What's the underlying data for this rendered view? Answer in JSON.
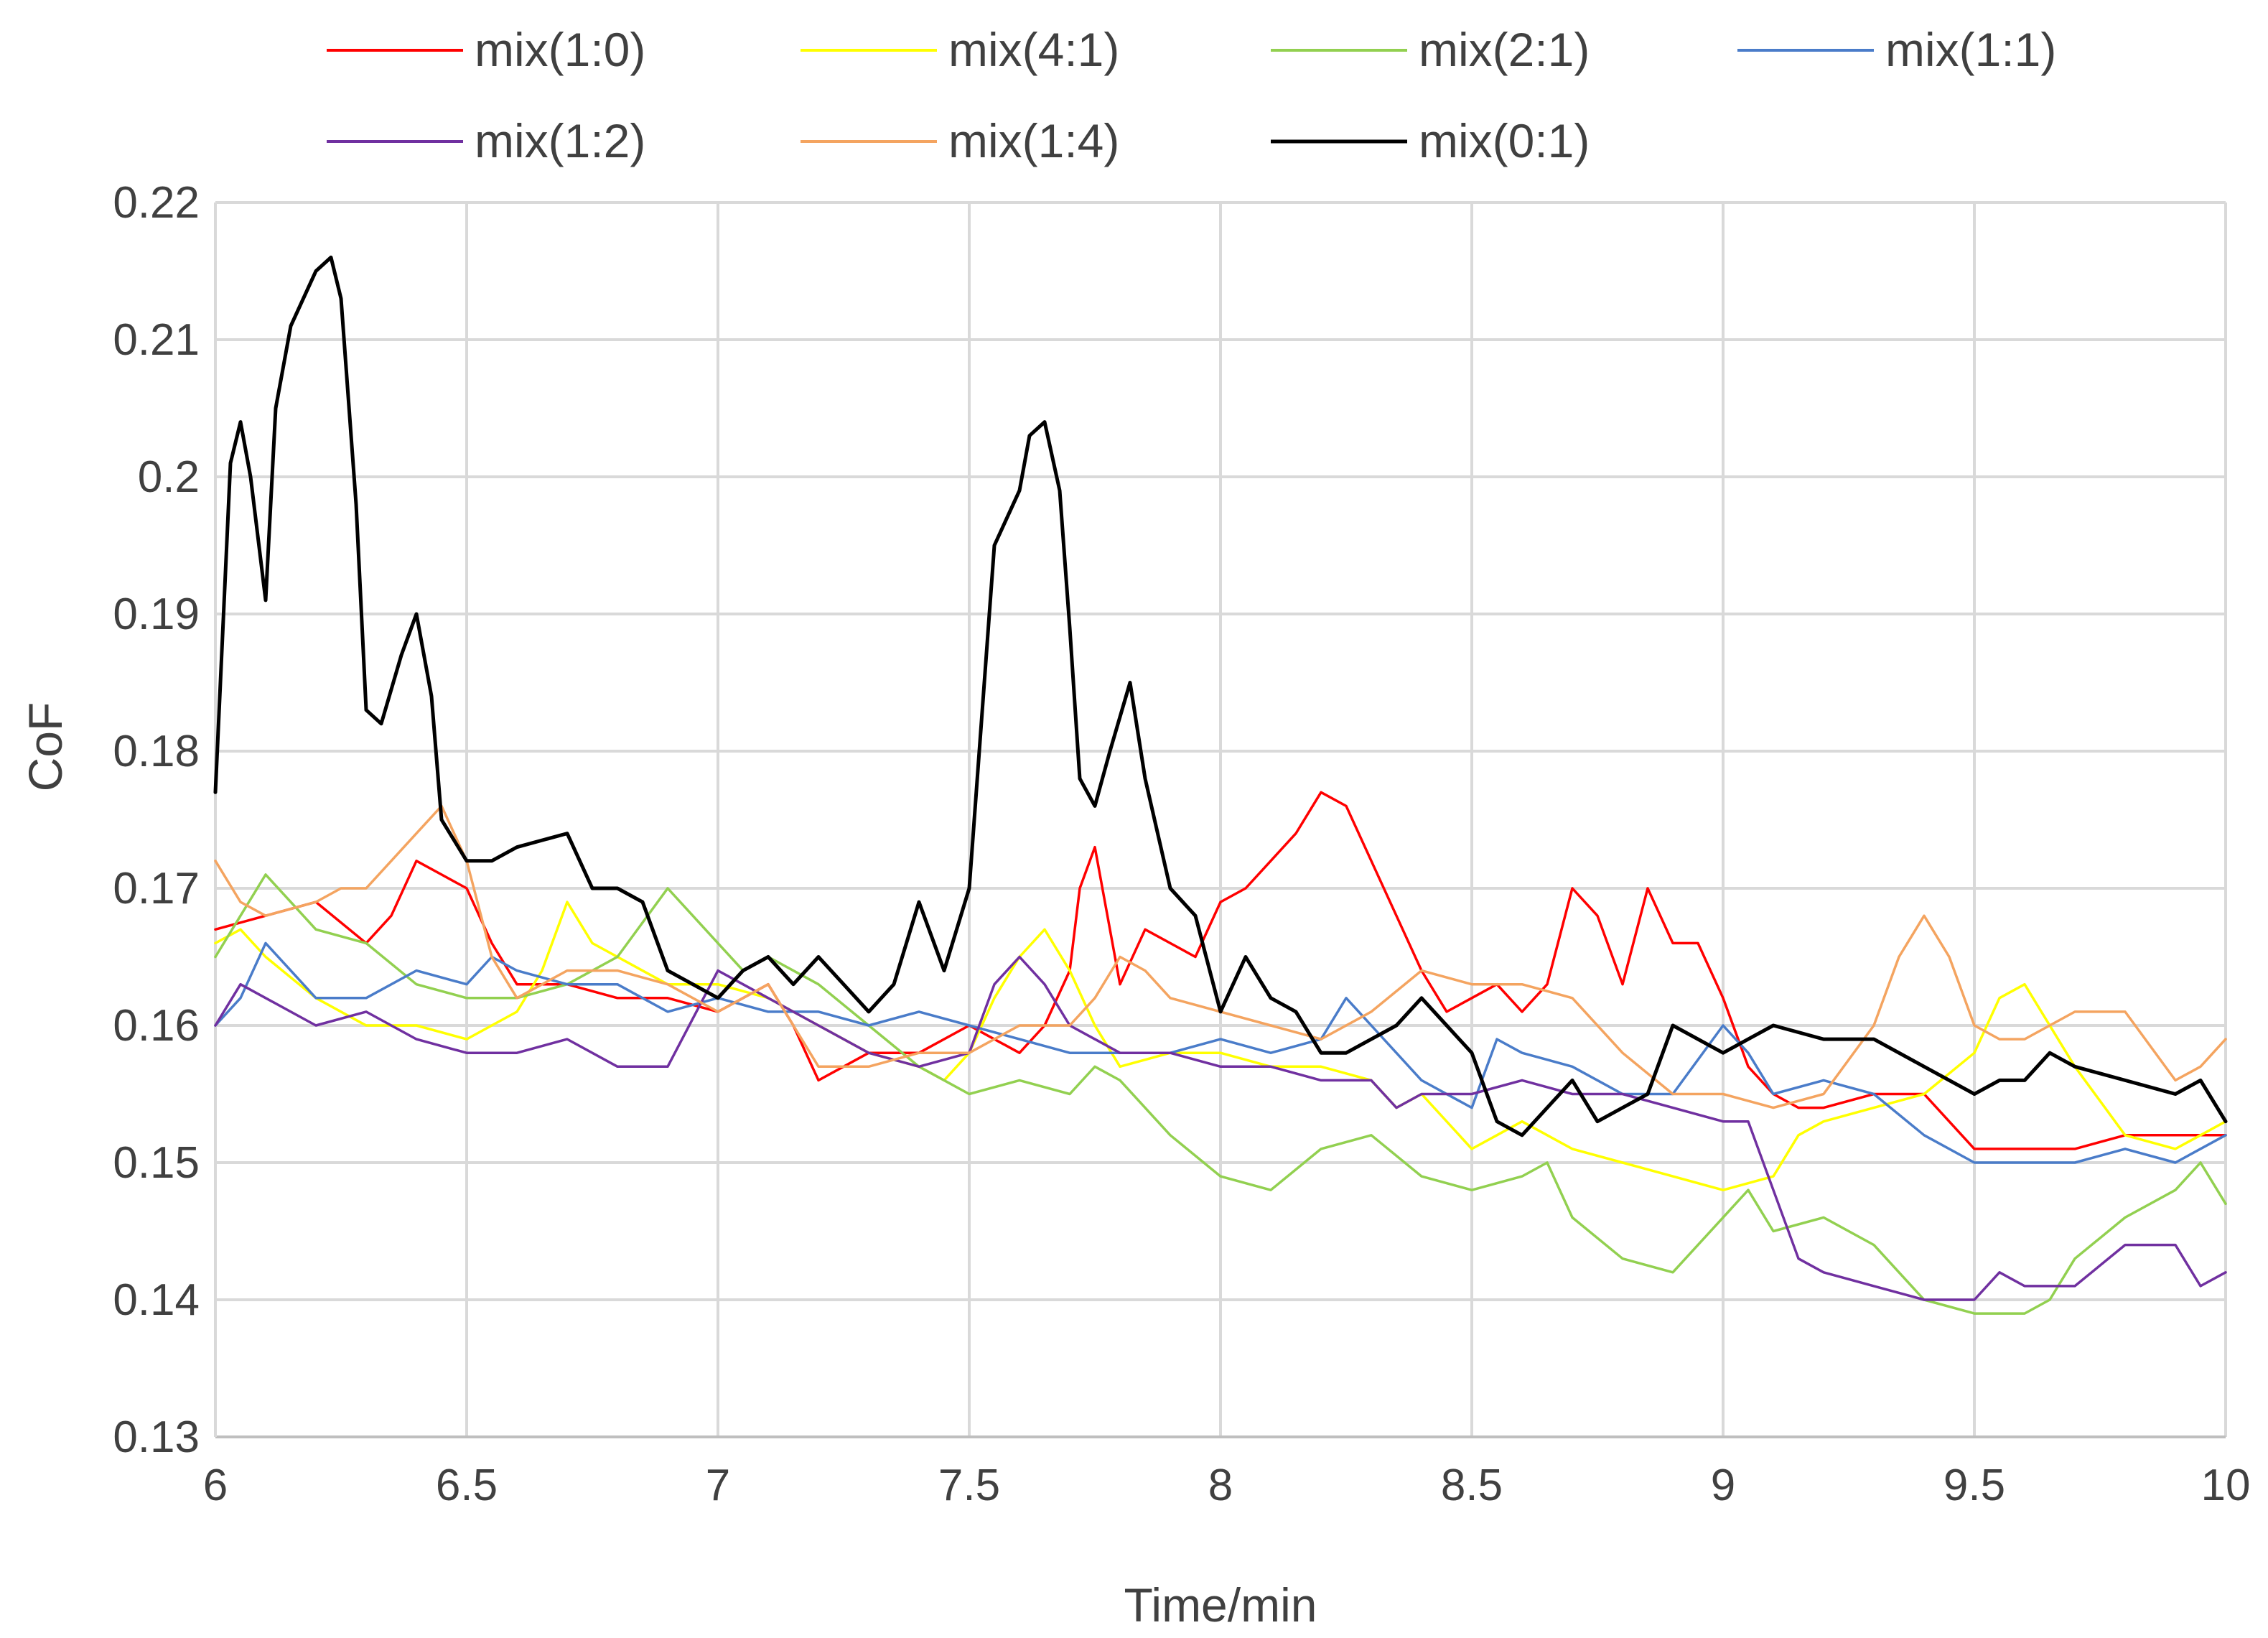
{
  "chart_data": {
    "type": "line",
    "title": "",
    "xlabel": "Time/min",
    "ylabel": "CoF",
    "xlim": [
      6,
      10
    ],
    "ylim": [
      0.13,
      0.22
    ],
    "x_ticks": [
      "6",
      "6.5",
      "7",
      "7.5",
      "8",
      "8.5",
      "9",
      "9.5",
      "10"
    ],
    "y_ticks": [
      "0.13",
      "0.14",
      "0.15",
      "0.16",
      "0.17",
      "0.18",
      "0.19",
      "0.2",
      "0.21",
      "0.22"
    ],
    "grid": true,
    "legend_position": "top",
    "series": [
      {
        "name": "mix(1:0)",
        "color": "#ff0000",
        "x": [
          6.0,
          6.1,
          6.2,
          6.3,
          6.35,
          6.4,
          6.45,
          6.5,
          6.55,
          6.6,
          6.7,
          6.8,
          6.9,
          7.0,
          7.1,
          7.15,
          7.2,
          7.3,
          7.4,
          7.5,
          7.6,
          7.65,
          7.7,
          7.72,
          7.75,
          7.78,
          7.8,
          7.85,
          7.9,
          7.95,
          8.0,
          8.05,
          8.1,
          8.15,
          8.2,
          8.25,
          8.3,
          8.35,
          8.4,
          8.45,
          8.5,
          8.55,
          8.6,
          8.65,
          8.7,
          8.75,
          8.8,
          8.85,
          8.9,
          8.95,
          9.0,
          9.05,
          9.1,
          9.15,
          9.2,
          9.3,
          9.4,
          9.5,
          9.6,
          9.7,
          9.8,
          9.9,
          10.0
        ],
        "y": [
          0.167,
          0.168,
          0.169,
          0.166,
          0.168,
          0.172,
          0.171,
          0.17,
          0.166,
          0.163,
          0.163,
          0.162,
          0.162,
          0.161,
          0.163,
          0.16,
          0.156,
          0.158,
          0.158,
          0.16,
          0.158,
          0.16,
          0.164,
          0.17,
          0.173,
          0.167,
          0.163,
          0.167,
          0.166,
          0.165,
          0.169,
          0.17,
          0.172,
          0.174,
          0.177,
          0.176,
          0.172,
          0.168,
          0.164,
          0.161,
          0.162,
          0.163,
          0.161,
          0.163,
          0.17,
          0.168,
          0.163,
          0.17,
          0.166,
          0.166,
          0.162,
          0.157,
          0.155,
          0.154,
          0.154,
          0.155,
          0.155,
          0.151,
          0.151,
          0.151,
          0.152,
          0.152,
          0.152
        ]
      },
      {
        "name": "mix(4:1)",
        "color": "#ffff00",
        "x": [
          6.0,
          6.05,
          6.1,
          6.2,
          6.3,
          6.4,
          6.5,
          6.55,
          6.6,
          6.65,
          6.7,
          6.75,
          6.8,
          6.9,
          7.0,
          7.1,
          7.2,
          7.3,
          7.4,
          7.45,
          7.5,
          7.55,
          7.6,
          7.65,
          7.7,
          7.75,
          7.8,
          7.9,
          8.0,
          8.1,
          8.2,
          8.3,
          8.35,
          8.4,
          8.5,
          8.55,
          8.6,
          8.7,
          8.8,
          8.9,
          9.0,
          9.1,
          9.15,
          9.2,
          9.3,
          9.4,
          9.5,
          9.55,
          9.6,
          9.7,
          9.8,
          9.9,
          10.0
        ],
        "y": [
          0.166,
          0.167,
          0.165,
          0.162,
          0.16,
          0.16,
          0.159,
          0.16,
          0.161,
          0.164,
          0.169,
          0.166,
          0.165,
          0.163,
          0.163,
          0.162,
          0.16,
          0.158,
          0.157,
          0.156,
          0.158,
          0.162,
          0.165,
          0.167,
          0.164,
          0.16,
          0.157,
          0.158,
          0.158,
          0.157,
          0.157,
          0.156,
          0.154,
          0.155,
          0.151,
          0.152,
          0.153,
          0.151,
          0.15,
          0.149,
          0.148,
          0.149,
          0.152,
          0.153,
          0.154,
          0.155,
          0.158,
          0.162,
          0.163,
          0.157,
          0.152,
          0.151,
          0.153
        ]
      },
      {
        "name": "mix(2:1)",
        "color": "#92d050",
        "x": [
          6.0,
          6.05,
          6.1,
          6.15,
          6.2,
          6.3,
          6.4,
          6.5,
          6.6,
          6.7,
          6.8,
          6.9,
          7.0,
          7.05,
          7.1,
          7.2,
          7.3,
          7.4,
          7.5,
          7.6,
          7.7,
          7.75,
          7.8,
          7.9,
          8.0,
          8.1,
          8.2,
          8.3,
          8.4,
          8.5,
          8.6,
          8.65,
          8.7,
          8.8,
          8.9,
          9.0,
          9.05,
          9.1,
          9.2,
          9.3,
          9.4,
          9.5,
          9.6,
          9.65,
          9.7,
          9.8,
          9.9,
          9.95,
          10.0
        ],
        "y": [
          0.165,
          0.168,
          0.171,
          0.169,
          0.167,
          0.166,
          0.163,
          0.162,
          0.162,
          0.163,
          0.165,
          0.17,
          0.166,
          0.164,
          0.165,
          0.163,
          0.16,
          0.157,
          0.155,
          0.156,
          0.155,
          0.157,
          0.156,
          0.152,
          0.149,
          0.148,
          0.151,
          0.152,
          0.149,
          0.148,
          0.149,
          0.15,
          0.146,
          0.143,
          0.142,
          0.146,
          0.148,
          0.145,
          0.146,
          0.144,
          0.14,
          0.139,
          0.139,
          0.14,
          0.143,
          0.146,
          0.148,
          0.15,
          0.147
        ]
      },
      {
        "name": "mix(1:1)",
        "color": "#4a7cc9",
        "x": [
          6.0,
          6.05,
          6.1,
          6.15,
          6.2,
          6.3,
          6.4,
          6.5,
          6.55,
          6.6,
          6.7,
          6.8,
          6.9,
          7.0,
          7.1,
          7.2,
          7.3,
          7.4,
          7.5,
          7.6,
          7.7,
          7.8,
          7.9,
          8.0,
          8.1,
          8.2,
          8.25,
          8.3,
          8.4,
          8.5,
          8.55,
          8.6,
          8.7,
          8.8,
          8.9,
          9.0,
          9.05,
          9.1,
          9.2,
          9.3,
          9.4,
          9.5,
          9.6,
          9.7,
          9.8,
          9.9,
          10.0
        ],
        "y": [
          0.16,
          0.162,
          0.166,
          0.164,
          0.162,
          0.162,
          0.164,
          0.163,
          0.165,
          0.164,
          0.163,
          0.163,
          0.161,
          0.162,
          0.161,
          0.161,
          0.16,
          0.161,
          0.16,
          0.159,
          0.158,
          0.158,
          0.158,
          0.159,
          0.158,
          0.159,
          0.162,
          0.16,
          0.156,
          0.154,
          0.159,
          0.158,
          0.157,
          0.155,
          0.155,
          0.16,
          0.158,
          0.155,
          0.156,
          0.155,
          0.152,
          0.15,
          0.15,
          0.15,
          0.151,
          0.15,
          0.152
        ]
      },
      {
        "name": "mix(1:2)",
        "color": "#7030a0",
        "x": [
          6.0,
          6.05,
          6.1,
          6.2,
          6.3,
          6.4,
          6.5,
          6.6,
          6.7,
          6.8,
          6.9,
          7.0,
          7.1,
          7.2,
          7.3,
          7.4,
          7.5,
          7.55,
          7.6,
          7.65,
          7.7,
          7.8,
          7.9,
          8.0,
          8.1,
          8.2,
          8.3,
          8.35,
          8.4,
          8.5,
          8.6,
          8.7,
          8.8,
          8.9,
          9.0,
          9.05,
          9.1,
          9.15,
          9.2,
          9.3,
          9.4,
          9.5,
          9.55,
          9.6,
          9.7,
          9.8,
          9.9,
          9.95,
          10.0
        ],
        "y": [
          0.16,
          0.163,
          0.162,
          0.16,
          0.161,
          0.159,
          0.158,
          0.158,
          0.159,
          0.157,
          0.157,
          0.164,
          0.162,
          0.16,
          0.158,
          0.157,
          0.158,
          0.163,
          0.165,
          0.163,
          0.16,
          0.158,
          0.158,
          0.157,
          0.157,
          0.156,
          0.156,
          0.154,
          0.155,
          0.155,
          0.156,
          0.155,
          0.155,
          0.154,
          0.153,
          0.153,
          0.148,
          0.143,
          0.142,
          0.141,
          0.14,
          0.14,
          0.142,
          0.141,
          0.141,
          0.144,
          0.144,
          0.141,
          0.142
        ]
      },
      {
        "name": "mix(1:4)",
        "color": "#f4a460",
        "x": [
          6.0,
          6.05,
          6.1,
          6.2,
          6.25,
          6.3,
          6.35,
          6.4,
          6.45,
          6.5,
          6.55,
          6.6,
          6.7,
          6.8,
          6.9,
          7.0,
          7.1,
          7.2,
          7.3,
          7.4,
          7.5,
          7.6,
          7.7,
          7.75,
          7.8,
          7.85,
          7.9,
          8.0,
          8.1,
          8.2,
          8.3,
          8.4,
          8.5,
          8.6,
          8.7,
          8.8,
          8.9,
          9.0,
          9.1,
          9.2,
          9.3,
          9.35,
          9.4,
          9.45,
          9.5,
          9.55,
          9.6,
          9.7,
          9.8,
          9.9,
          9.95,
          10.0
        ],
        "y": [
          0.172,
          0.169,
          0.168,
          0.169,
          0.17,
          0.17,
          0.172,
          0.174,
          0.176,
          0.172,
          0.165,
          0.162,
          0.164,
          0.164,
          0.163,
          0.161,
          0.163,
          0.157,
          0.157,
          0.158,
          0.158,
          0.16,
          0.16,
          0.162,
          0.165,
          0.164,
          0.162,
          0.161,
          0.16,
          0.159,
          0.161,
          0.164,
          0.163,
          0.163,
          0.162,
          0.158,
          0.155,
          0.155,
          0.154,
          0.155,
          0.16,
          0.165,
          0.168,
          0.165,
          0.16,
          0.159,
          0.159,
          0.161,
          0.161,
          0.156,
          0.157,
          0.159
        ]
      },
      {
        "name": "mix(0:1)",
        "color": "#000000",
        "x": [
          6.0,
          6.03,
          6.05,
          6.07,
          6.1,
          6.12,
          6.15,
          6.2,
          6.23,
          6.25,
          6.28,
          6.3,
          6.33,
          6.37,
          6.4,
          6.43,
          6.45,
          6.5,
          6.55,
          6.6,
          6.7,
          6.75,
          6.8,
          6.85,
          6.9,
          6.95,
          7.0,
          7.05,
          7.1,
          7.15,
          7.2,
          7.25,
          7.3,
          7.35,
          7.4,
          7.45,
          7.5,
          7.55,
          7.6,
          7.62,
          7.65,
          7.68,
          7.7,
          7.72,
          7.75,
          7.78,
          7.82,
          7.85,
          7.9,
          7.95,
          8.0,
          8.05,
          8.1,
          8.15,
          8.2,
          8.25,
          8.3,
          8.35,
          8.4,
          8.45,
          8.5,
          8.55,
          8.6,
          8.65,
          8.7,
          8.75,
          8.8,
          8.85,
          8.9,
          9.0,
          9.05,
          9.1,
          9.2,
          9.3,
          9.4,
          9.5,
          9.55,
          9.6,
          9.65,
          9.7,
          9.8,
          9.9,
          9.95,
          10.0
        ],
        "y": [
          0.177,
          0.201,
          0.204,
          0.2,
          0.191,
          0.205,
          0.211,
          0.215,
          0.216,
          0.213,
          0.198,
          0.183,
          0.182,
          0.187,
          0.19,
          0.184,
          0.175,
          0.172,
          0.172,
          0.173,
          0.174,
          0.17,
          0.17,
          0.169,
          0.164,
          0.163,
          0.162,
          0.164,
          0.165,
          0.163,
          0.165,
          0.163,
          0.161,
          0.163,
          0.169,
          0.164,
          0.17,
          0.195,
          0.199,
          0.203,
          0.204,
          0.199,
          0.189,
          0.178,
          0.176,
          0.18,
          0.185,
          0.178,
          0.17,
          0.168,
          0.161,
          0.165,
          0.162,
          0.161,
          0.158,
          0.158,
          0.159,
          0.16,
          0.162,
          0.16,
          0.158,
          0.153,
          0.152,
          0.154,
          0.156,
          0.153,
          0.154,
          0.155,
          0.16,
          0.158,
          0.159,
          0.16,
          0.159,
          0.159,
          0.157,
          0.155,
          0.156,
          0.156,
          0.158,
          0.157,
          0.156,
          0.155,
          0.156,
          0.153
        ]
      }
    ]
  }
}
